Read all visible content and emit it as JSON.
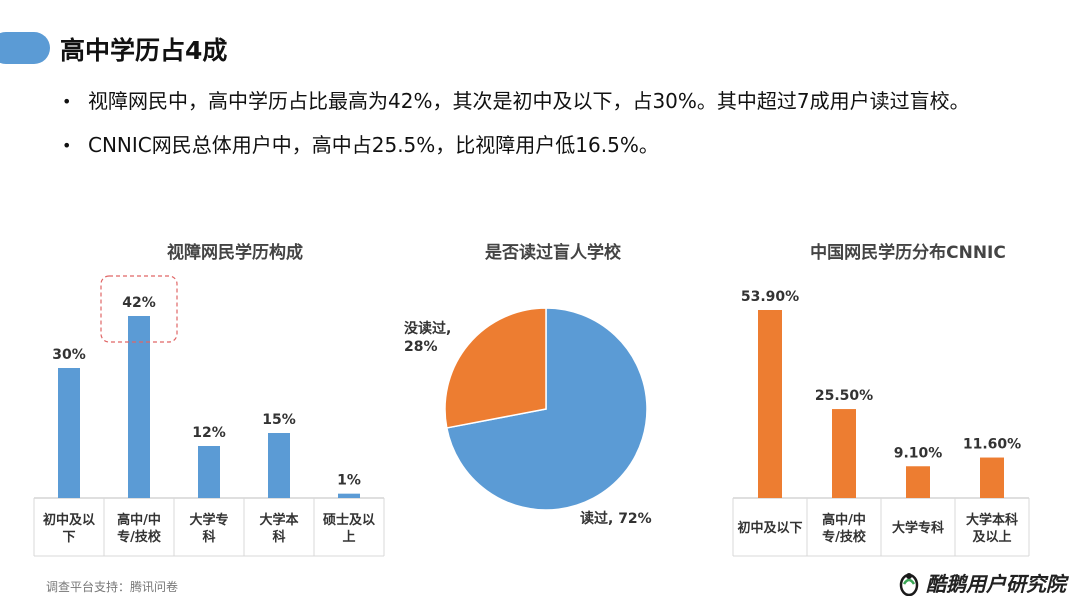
{
  "slide": {
    "title": "高中学历占4成",
    "bullets": [
      "视障网民中，高中学历占比最高为42%，其次是初中及以下，占30%。其中超过7成用户读过盲校。",
      "CNNIC网民总体用户中，高中占25.5%，比视障用户低16.5%。"
    ],
    "source": "调查平台支持：腾讯问卷",
    "brand": "酷鹅用户研究院"
  },
  "colors": {
    "blue": "#5b9bd5",
    "orange": "#ed7d31",
    "highlight_dash": "#e06666"
  },
  "chart_data": [
    {
      "type": "bar",
      "title": "视障网民学历构成",
      "categories": [
        "初中及以下",
        "高中/中专/技校",
        "大学专科",
        "大学本科",
        "硕士及以上"
      ],
      "category_lines": [
        [
          "初中及以",
          "下"
        ],
        [
          "高中/中",
          "专/技校"
        ],
        [
          "大学专",
          "科"
        ],
        [
          "大学本",
          "科"
        ],
        [
          "硕士及以",
          "上"
        ]
      ],
      "values": [
        30,
        42,
        12,
        15,
        1
      ],
      "labels": [
        "30%",
        "42%",
        "12%",
        "15%",
        "1%"
      ],
      "highlight_index": 1,
      "color": "#5b9bd5"
    },
    {
      "type": "pie",
      "title": "是否读过盲人学校",
      "slices": [
        {
          "name": "读过",
          "value": 72,
          "label": "读过, 72%",
          "color": "#5b9bd5"
        },
        {
          "name": "没读过",
          "value": 28,
          "label_lines": [
            "没读过,",
            "28%"
          ],
          "color": "#ed7d31"
        }
      ]
    },
    {
      "type": "bar",
      "title": "中国网民学历分布CNNIC",
      "categories": [
        "初中及以下",
        "高中/中专/技校",
        "大学专科",
        "大学本科及以上"
      ],
      "category_lines": [
        [
          "初中及以下"
        ],
        [
          "高中/中",
          "专/技校"
        ],
        [
          "大学专科"
        ],
        [
          "大学本科",
          "及以上"
        ]
      ],
      "values": [
        53.9,
        25.5,
        9.1,
        11.6
      ],
      "labels": [
        "53.90%",
        "25.50%",
        "9.10%",
        "11.60%"
      ],
      "color": "#ed7d31"
    }
  ]
}
